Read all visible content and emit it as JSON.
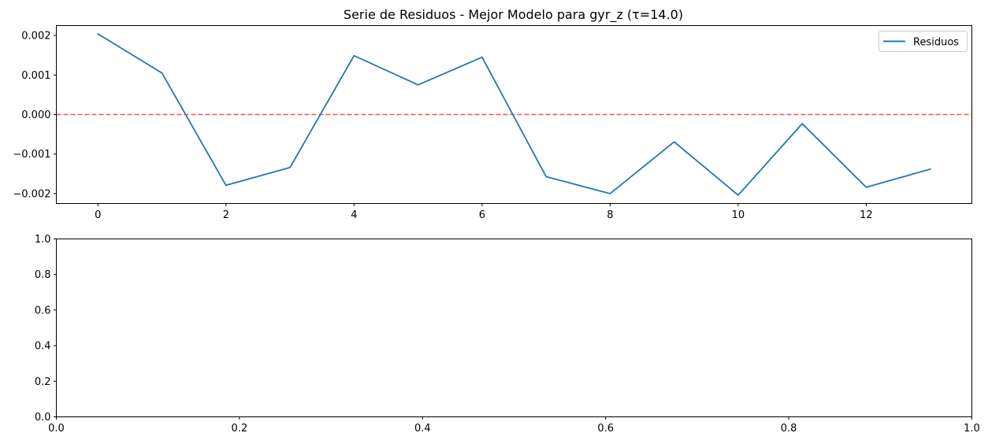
{
  "chart_data": [
    {
      "type": "line",
      "title": "Serie de Residuos - Mejor Modelo para gyr_z (τ=14.0)",
      "xlabel": "",
      "ylabel": "",
      "xlim": [
        -0.65,
        13.65
      ],
      "ylim": [
        -0.00225,
        0.00225
      ],
      "xticks": [
        0,
        2,
        4,
        6,
        8,
        10,
        12
      ],
      "xtick_labels": [
        "0",
        "2",
        "4",
        "6",
        "8",
        "10",
        "12"
      ],
      "yticks": [
        0.002,
        0.001,
        0.0,
        -0.001,
        -0.002
      ],
      "ytick_labels": [
        "0.002",
        "0.001",
        "0.000",
        "−0.001",
        "−0.002"
      ],
      "grid": false,
      "legend_position": "top-right",
      "series": [
        {
          "name": "Residuos",
          "color": "#1f77b4",
          "x": [
            0,
            1,
            2,
            3,
            4,
            5,
            6,
            7,
            8,
            9,
            10,
            11,
            12,
            13
          ],
          "values": [
            0.00204,
            0.00105,
            -0.00179,
            -0.00134,
            0.00149,
            0.00075,
            0.00145,
            -0.00157,
            -0.002,
            -0.00069,
            -0.00204,
            -0.00023,
            -0.00184,
            -0.00138
          ]
        }
      ],
      "reference_lines": [
        {
          "y": 0.0,
          "color": "#ff0000",
          "style": "dashed"
        }
      ]
    },
    {
      "type": "line",
      "title": "",
      "xlabel": "",
      "ylabel": "",
      "xlim": [
        0.0,
        1.0
      ],
      "ylim": [
        0.0,
        1.0
      ],
      "xticks": [
        0.0,
        0.2,
        0.4,
        0.6,
        0.8,
        1.0
      ],
      "xtick_labels": [
        "0.0",
        "0.2",
        "0.4",
        "0.6",
        "0.8",
        "1.0"
      ],
      "yticks": [
        0.0,
        0.2,
        0.4,
        0.6,
        0.8,
        1.0
      ],
      "ytick_labels": [
        "0.0",
        "0.2",
        "0.4",
        "0.6",
        "0.8",
        "1.0"
      ],
      "grid": false,
      "series": []
    }
  ]
}
